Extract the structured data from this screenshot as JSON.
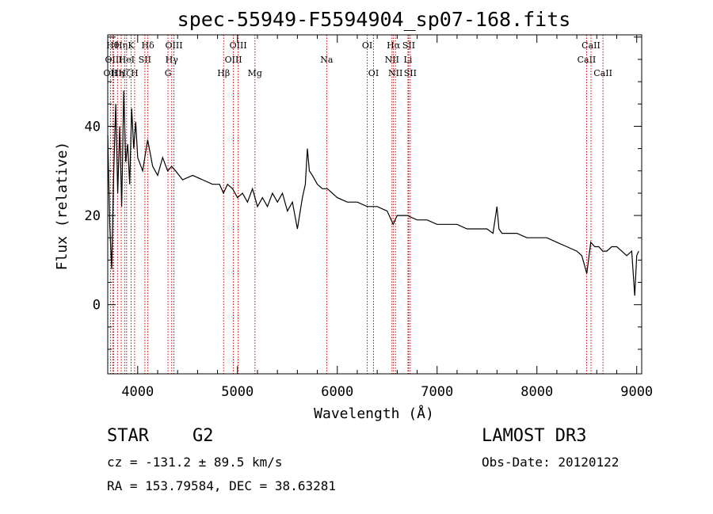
{
  "chart_data": {
    "type": "line",
    "title": "spec-55949-F5594904_sp07-168.fits",
    "xlabel": "Wavelength (Å)",
    "ylabel": "Flux (relative)",
    "xlim": [
      3700,
      9050
    ],
    "ylim": [
      -15.5,
      60.5
    ],
    "xticks": [
      4000,
      5000,
      6000,
      7000,
      8000,
      9000
    ],
    "yticks": [
      0,
      20,
      40
    ],
    "line_color": "#000000",
    "marker_color": "#cc0000",
    "series": [
      {
        "name": "spectrum",
        "x": [
          3700,
          3720,
          3740,
          3760,
          3780,
          3800,
          3820,
          3840,
          3860,
          3880,
          3900,
          3920,
          3940,
          3960,
          3980,
          4000,
          4050,
          4100,
          4150,
          4200,
          4250,
          4300,
          4340,
          4380,
          4450,
          4550,
          4650,
          4750,
          4820,
          4860,
          4900,
          4950,
          5000,
          5050,
          5100,
          5150,
          5200,
          5250,
          5300,
          5350,
          5400,
          5450,
          5500,
          5550,
          5600,
          5650,
          5680,
          5700,
          5720,
          5750,
          5800,
          5850,
          5900,
          5950,
          6000,
          6100,
          6200,
          6300,
          6400,
          6500,
          6560,
          6600,
          6700,
          6800,
          6900,
          7000,
          7100,
          7200,
          7300,
          7400,
          7500,
          7560,
          7600,
          7620,
          7650,
          7700,
          7800,
          7900,
          8000,
          8100,
          8200,
          8300,
          8400,
          8450,
          8500,
          8540,
          8580,
          8620,
          8660,
          8700,
          8750,
          8800,
          8850,
          8900,
          8950,
          8980,
          9000,
          9020
        ],
        "y": [
          38,
          18,
          8,
          30,
          45,
          25,
          40,
          22,
          48,
          32,
          36,
          27,
          44,
          35,
          41,
          33,
          30,
          37,
          31,
          29,
          33,
          30,
          31,
          30,
          28,
          29,
          28,
          27,
          27,
          25,
          27,
          26,
          24,
          25,
          23,
          26,
          22,
          24,
          22,
          25,
          23,
          25,
          21,
          23,
          17,
          24,
          27,
          35,
          30,
          29,
          27,
          26,
          26,
          25,
          24,
          23,
          23,
          22,
          22,
          21,
          18,
          20,
          20,
          19,
          19,
          18,
          18,
          18,
          17,
          17,
          17,
          16,
          22,
          17,
          16,
          16,
          16,
          15,
          15,
          15,
          14,
          13,
          12,
          11,
          7,
          14,
          13,
          13,
          12,
          12,
          13,
          13,
          12,
          11,
          12,
          2,
          11,
          12
        ]
      }
    ],
    "lines": [
      {
        "wavelength": 3727,
        "label": "OII",
        "row": 2
      },
      {
        "wavelength": 3750,
        "label": "Hθ",
        "row": 0
      },
      {
        "wavelength": 3760,
        "label": "OIII",
        "row": 1
      },
      {
        "wavelength": 3798,
        "label": "Hη",
        "row": 2
      },
      {
        "wavelength": 3835,
        "label": "Hη",
        "row": 0
      },
      {
        "wavelength": 3869,
        "label": "Hζ",
        "row": 2
      },
      {
        "wavelength": 3889,
        "label": "HeI",
        "row": 1
      },
      {
        "wavelength": 3934,
        "label": "K",
        "row": 0
      },
      {
        "wavelength": 3969,
        "label": "H",
        "row": 2
      },
      {
        "wavelength": 4072,
        "label": "SII",
        "row": 1
      },
      {
        "wavelength": 4102,
        "label": "Hδ",
        "row": 0
      },
      {
        "wavelength": 4304,
        "label": "G",
        "row": 2
      },
      {
        "wavelength": 4341,
        "label": "Hγ",
        "row": 1
      },
      {
        "wavelength": 4363,
        "label": "OIII",
        "row": 0
      },
      {
        "wavelength": 4861,
        "label": "Hβ",
        "row": 2
      },
      {
        "wavelength": 4959,
        "label": "OIII",
        "row": 1
      },
      {
        "wavelength": 5007,
        "label": "OIII",
        "row": 0
      },
      {
        "wavelength": 5175,
        "label": "Mg",
        "row": 2
      },
      {
        "wavelength": 5894,
        "label": "Na",
        "row": 1
      },
      {
        "wavelength": 6300,
        "label": "OI",
        "row": 0
      },
      {
        "wavelength": 6363,
        "label": "OI",
        "row": 2
      },
      {
        "wavelength": 6548,
        "label": "NII",
        "row": 1
      },
      {
        "wavelength": 6563,
        "label": "Hα",
        "row": 0
      },
      {
        "wavelength": 6583,
        "label": "NII",
        "row": 2
      },
      {
        "wavelength": 6708,
        "label": "Li",
        "row": 1
      },
      {
        "wavelength": 6716,
        "label": "SII",
        "row": 0
      },
      {
        "wavelength": 6731,
        "label": "SII",
        "row": 2
      },
      {
        "wavelength": 8498,
        "label": "CaII",
        "row": 1
      },
      {
        "wavelength": 8542,
        "label": "CaII",
        "row": 0
      },
      {
        "wavelength": 8662,
        "label": "CaII",
        "row": 2
      }
    ]
  },
  "info": {
    "object_class": "STAR",
    "subclass": "G2",
    "survey": "LAMOST DR3",
    "cz_text": "cz = -131.2 ± 89.5 km/s",
    "obs_date_text": "Obs-Date: 20120122",
    "radec_text": "RA = 153.79584, DEC =  38.63281"
  }
}
